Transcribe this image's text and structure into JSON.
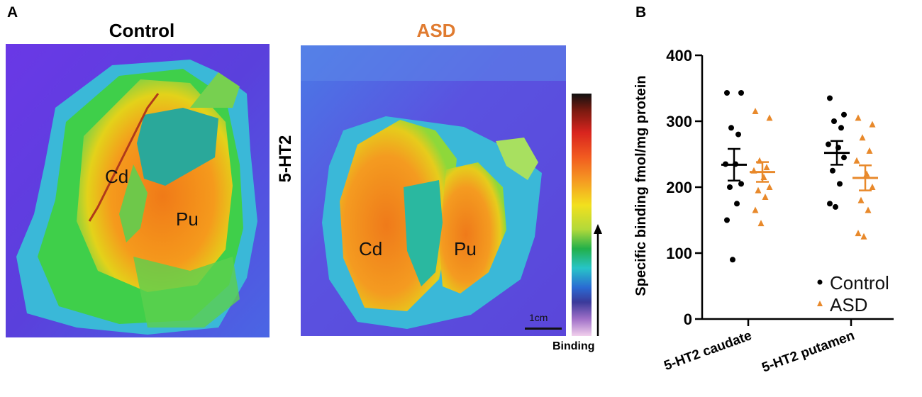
{
  "panel_a": {
    "letter": "A",
    "control_title": "Control",
    "asd_title": "ASD",
    "receptor_label": "5-HT2",
    "control_regions": [
      "Cd",
      "Pu"
    ],
    "asd_regions": [
      "Cd",
      "Pu"
    ],
    "scale_bar": "1cm",
    "colorbar_label": "Binding"
  },
  "panel_b": {
    "letter": "B"
  },
  "colors": {
    "control": "#000000",
    "asd": "#e8892b",
    "asd_title": "#e07b30"
  },
  "chart_data": {
    "type": "scatter",
    "title": "",
    "ylabel": "Specific binding fmol/mg protein",
    "xlabel": "",
    "ylim": [
      0,
      400
    ],
    "yticks": [
      0,
      100,
      200,
      300,
      400
    ],
    "categories": [
      "5-HT2 caudate",
      "5-HT2 putamen"
    ],
    "legend_position": "bottom-right",
    "series": [
      {
        "name": "Control",
        "marker": "circle",
        "color": "#000000",
        "groups": [
          {
            "category": "5-HT2 caudate",
            "values": [
              343,
              343,
              290,
              280,
              235,
              235,
              205,
              200,
              175,
              150,
              90
            ],
            "mean": 234,
            "sem": 24
          },
          {
            "category": "5-HT2 putamen",
            "values": [
              335,
              310,
              300,
              290,
              265,
              260,
              245,
              225,
              205,
              175,
              170
            ],
            "mean": 252,
            "sem": 18
          }
        ]
      },
      {
        "name": "ASD",
        "marker": "triangle",
        "color": "#e8892b",
        "groups": [
          {
            "category": "5-HT2 caudate",
            "values": [
              315,
              305,
              240,
              230,
              225,
              215,
              200,
              195,
              185,
              165,
              145
            ],
            "mean": 223,
            "sem": 15
          },
          {
            "category": "5-HT2 putamen",
            "values": [
              305,
              295,
              275,
              255,
              240,
              220,
              200,
              180,
              165,
              130,
              125
            ],
            "mean": 214,
            "sem": 19
          }
        ]
      }
    ]
  }
}
